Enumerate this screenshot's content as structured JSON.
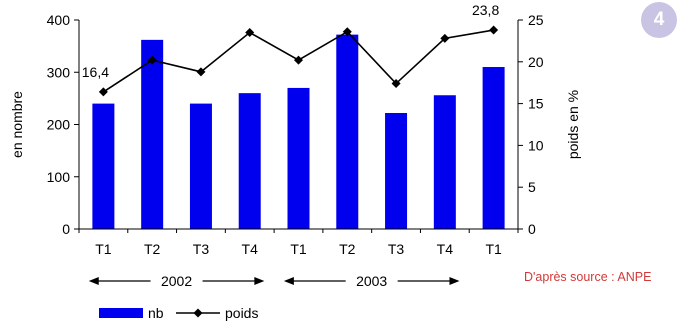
{
  "badge": "4",
  "source": "D'après source : ANPE",
  "colors": {
    "bar": "#0000ee",
    "line": "#000000",
    "badge": "#c9c3e4",
    "source": "#d23a3a"
  },
  "chart_data": {
    "type": "bar",
    "categories": [
      "T1",
      "T2",
      "T3",
      "T4",
      "T1",
      "T2",
      "T3",
      "T4",
      "T1"
    ],
    "year_groups": [
      {
        "label": "2002",
        "start": 0,
        "end": 3
      },
      {
        "label": "2003",
        "start": 4,
        "end": 7
      }
    ],
    "series": [
      {
        "name": "nb",
        "type": "bar",
        "axis": "left",
        "values": [
          240,
          362,
          240,
          260,
          270,
          372,
          222,
          256,
          310
        ]
      },
      {
        "name": "poids",
        "type": "line",
        "axis": "right",
        "values": [
          16.4,
          20.2,
          18.8,
          23.5,
          20.2,
          23.6,
          17.4,
          22.8,
          23.8
        ]
      }
    ],
    "data_labels": [
      {
        "index": 0,
        "text": "16,4"
      },
      {
        "index": 8,
        "text": "23,8"
      }
    ],
    "ylabel_left": "en nombre",
    "ylabel_right": "poids en %",
    "ylim_left": [
      0,
      400
    ],
    "yticks_left": [
      0,
      100,
      200,
      300,
      400
    ],
    "ylim_right": [
      0,
      25
    ],
    "yticks_right": [
      0,
      5,
      10,
      15,
      20,
      25
    ],
    "legend_position": "bottom-left",
    "grid": false
  }
}
